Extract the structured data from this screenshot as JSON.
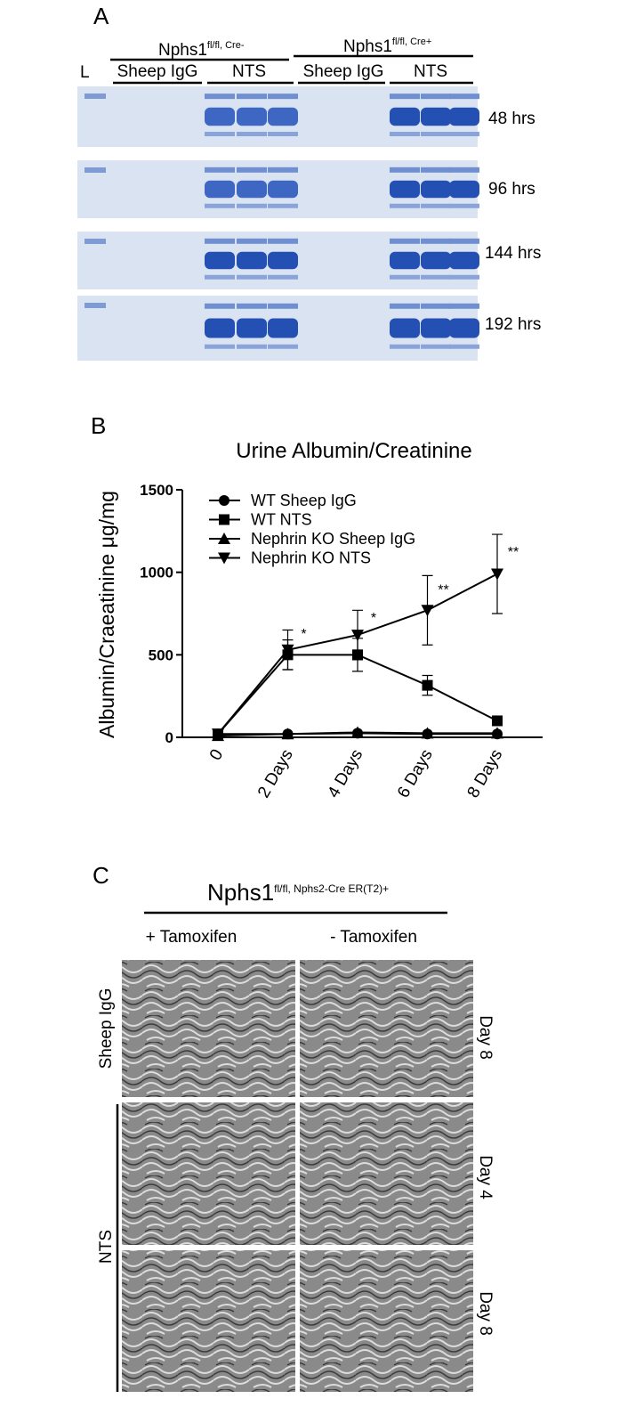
{
  "panel_a": {
    "letter": "A",
    "group_left": {
      "name": "Nphs1",
      "superscript": "fl/fl, Cre-"
    },
    "group_right": {
      "name": "Nphs1",
      "superscript": "fl/fl, Cre+"
    },
    "lane_ladder": "L",
    "subgroups": [
      "Sheep IgG",
      "NTS",
      "Sheep IgG",
      "NTS"
    ],
    "rows": [
      "48 hrs",
      "96 hrs",
      "144 hrs",
      "192 hrs"
    ]
  },
  "chart_data": {
    "type": "line",
    "panel_letter": "B",
    "title": "Urine Albumin/Creatinine",
    "y_label": "Albumin/Craeatinine μg/mg",
    "categories": [
      "0",
      "2 Days",
      "4 Days",
      "6 Days",
      "8 Days"
    ],
    "ylim": [
      0,
      1500
    ],
    "yticks": [
      0,
      500,
      1000,
      1500
    ],
    "legend": "top-left",
    "series": [
      {
        "name": "WT Sheep IgG",
        "color": "#000000",
        "marker": "circle",
        "values": [
          20,
          20,
          25,
          20,
          20
        ]
      },
      {
        "name": "WT NTS",
        "color": "#000000",
        "marker": "square",
        "values": [
          20,
          500,
          500,
          315,
          100
        ],
        "errors": [
          5,
          90,
          100,
          60,
          10
        ]
      },
      {
        "name": "Nephrin KO Sheep IgG",
        "color": "#000000",
        "marker": "triangle-up",
        "values": [
          10,
          20,
          30,
          25,
          25
        ]
      },
      {
        "name": "Nephrin KO NTS",
        "color": "#000000",
        "marker": "triangle-down",
        "values": [
          20,
          530,
          620,
          770,
          990
        ],
        "errors": [
          5,
          120,
          150,
          210,
          240
        ]
      }
    ],
    "annotations": [
      null,
      "*",
      "*",
      "**",
      "**"
    ]
  },
  "panel_c": {
    "letter": "C",
    "group": {
      "name": "Nphs1",
      "superscript": "fl/fl, Nphs2-Cre ER(T2)+"
    },
    "columns": [
      "+ Tamoxifen",
      "- Tamoxifen"
    ],
    "row_groups": [
      "Sheep IgG",
      "NTS"
    ],
    "rows": [
      "Day 8",
      "Day 4",
      "Day 8"
    ]
  }
}
